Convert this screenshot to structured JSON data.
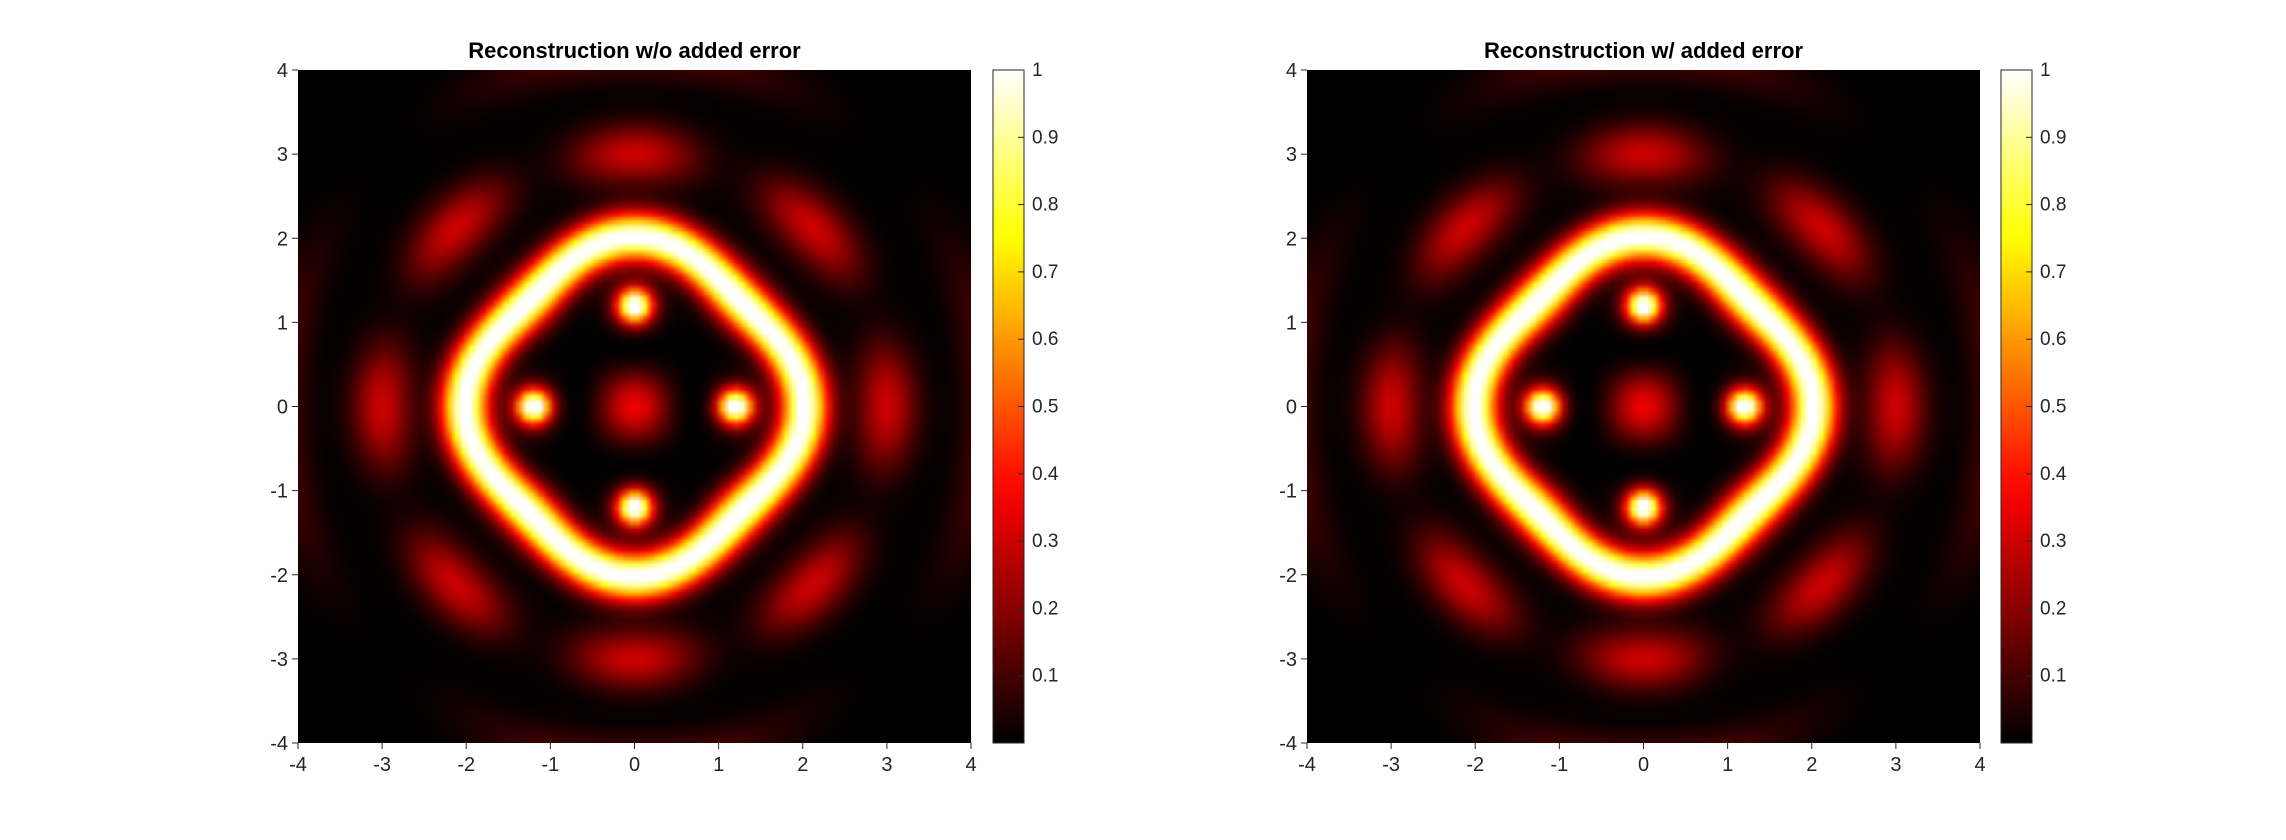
{
  "chart_data": [
    {
      "type": "heatmap",
      "title": "Reconstruction w/o added error",
      "xlim": [
        -4,
        4
      ],
      "ylim": [
        -4,
        4
      ],
      "xticks": [
        -4,
        -3,
        -2,
        -1,
        0,
        1,
        2,
        3,
        4
      ],
      "yticks": [
        -4,
        -3,
        -2,
        -1,
        0,
        1,
        2,
        3,
        4
      ],
      "colormap": "hot",
      "colorbar": {
        "range": [
          0,
          1
        ],
        "ticks": [
          0.1,
          0.2,
          0.3,
          0.4,
          0.5,
          0.6,
          0.7,
          0.8,
          0.9,
          1
        ]
      },
      "overlay": {
        "style": "dashed",
        "color": "#1010ee",
        "shape": "four-lobed boundary",
        "extent": 2
      }
    },
    {
      "type": "heatmap",
      "title": "Reconstruction w/ added error",
      "xlim": [
        -4,
        4
      ],
      "ylim": [
        -4,
        4
      ],
      "xticks": [
        -4,
        -3,
        -2,
        -1,
        0,
        1,
        2,
        3,
        4
      ],
      "yticks": [
        -4,
        -3,
        -2,
        -1,
        0,
        1,
        2,
        3,
        4
      ],
      "colormap": "hot",
      "colorbar": {
        "range": [
          0,
          1
        ],
        "ticks": [
          0.1,
          0.2,
          0.3,
          0.4,
          0.5,
          0.6,
          0.7,
          0.8,
          0.9,
          1
        ]
      },
      "overlay": {
        "style": "dashed",
        "color": "#1010ee",
        "shape": "four-lobed boundary",
        "extent": 2
      }
    }
  ]
}
